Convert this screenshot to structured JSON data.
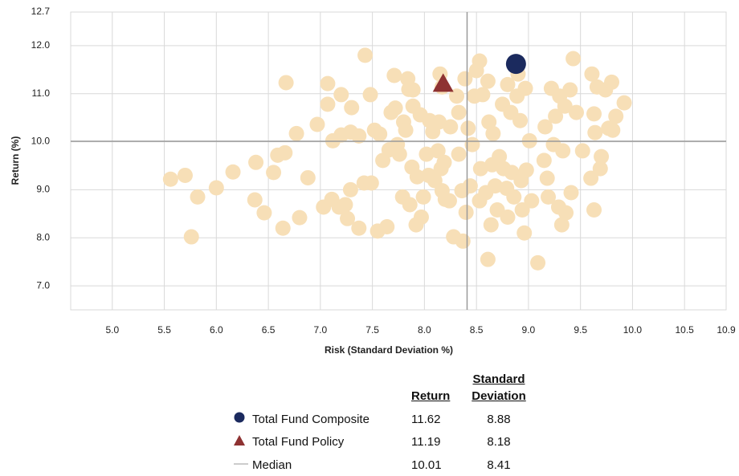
{
  "chart_data": {
    "type": "scatter",
    "xlabel": "Risk (Standard Deviation %)",
    "ylabel": "Return (%)",
    "xlim": [
      4.6,
      10.9
    ],
    "ylim": [
      6.5,
      12.7
    ],
    "xticks": [
      {
        "value": 5.0,
        "label": "5.0"
      },
      5.5,
      {
        "value": 6.0,
        "label": "6.0"
      },
      6.5,
      {
        "value": 7.0,
        "label": "7.0"
      },
      7.5,
      {
        "value": 8.0,
        "label": "8.0"
      },
      8.5,
      {
        "value": 9.0,
        "label": "9.0"
      },
      9.5,
      {
        "value": 10.0,
        "label": "10.0"
      },
      10.5,
      10.9
    ],
    "yticks": [
      {
        "value": 7.0,
        "label": "7.0"
      },
      {
        "value": 8.0,
        "label": "8.0"
      },
      {
        "value": 9.0,
        "label": "9.0"
      },
      {
        "value": 10.0,
        "label": "10.0"
      },
      {
        "value": 11.0,
        "label": "11.0"
      },
      {
        "value": 12.0,
        "label": "12.0"
      },
      12.7
    ],
    "grid": true,
    "series": [
      {
        "color": "#f7dfb7",
        "marker": "circle",
        "x": [
          5.56,
          5.7,
          5.82,
          5.76,
          6.0,
          6.16,
          6.38,
          6.37,
          6.46,
          6.55,
          6.59,
          6.66,
          6.64,
          6.67,
          6.77,
          6.8,
          6.88,
          6.97,
          7.03,
          7.07,
          7.07,
          7.12,
          7.11,
          7.18,
          7.2,
          7.2,
          7.24,
          7.26,
          7.3,
          7.29,
          7.29,
          7.37,
          7.37,
          7.42,
          7.43,
          7.48,
          7.49,
          7.52,
          7.55,
          7.57,
          7.6,
          7.64,
          7.66,
          7.68,
          7.71,
          7.72,
          7.74,
          7.76,
          7.79,
          7.8,
          7.82,
          7.84,
          7.85,
          7.86,
          7.88,
          7.89,
          7.89,
          7.93,
          7.92,
          7.96,
          7.97,
          7.99,
          8.02,
          8.04,
          8.05,
          8.08,
          8.1,
          8.13,
          8.15,
          8.17,
          8.14,
          8.16,
          8.17,
          8.19,
          8.2,
          8.24,
          8.25,
          8.28,
          8.31,
          8.33,
          8.33,
          8.36,
          8.37,
          8.39,
          8.4,
          8.42,
          8.44,
          8.46,
          8.48,
          8.5,
          8.53,
          8.53,
          8.54,
          8.56,
          8.59,
          8.61,
          8.61,
          8.62,
          8.64,
          8.65,
          8.66,
          8.68,
          8.7,
          8.72,
          8.75,
          8.76,
          8.79,
          8.8,
          8.8,
          8.83,
          8.84,
          8.86,
          8.89,
          8.9,
          8.92,
          8.93,
          8.94,
          8.96,
          8.97,
          8.98,
          9.01,
          9.03,
          9.09,
          9.15,
          9.16,
          9.18,
          9.19,
          9.22,
          9.24,
          9.26,
          9.29,
          9.3,
          9.32,
          9.33,
          9.35,
          9.36,
          9.4,
          9.41,
          9.43,
          9.46,
          9.52,
          9.6,
          9.61,
          9.63,
          9.63,
          9.64,
          9.66,
          9.69,
          9.7,
          9.74,
          9.77,
          9.8,
          9.81,
          9.84,
          9.92
        ],
        "y": [
          9.22,
          9.3,
          8.85,
          8.02,
          9.04,
          9.37,
          9.57,
          8.79,
          8.52,
          9.36,
          9.72,
          9.77,
          8.2,
          11.23,
          10.17,
          8.42,
          9.25,
          10.36,
          8.64,
          11.21,
          10.78,
          10.02,
          8.8,
          8.64,
          10.14,
          10.98,
          8.69,
          8.4,
          10.71,
          9.0,
          10.2,
          10.12,
          8.2,
          9.14,
          11.8,
          10.98,
          9.14,
          10.24,
          8.14,
          10.16,
          9.61,
          8.23,
          9.83,
          10.61,
          11.38,
          10.7,
          9.94,
          9.74,
          8.85,
          10.41,
          10.24,
          11.31,
          11.09,
          8.69,
          9.47,
          10.74,
          11.08,
          9.27,
          8.27,
          10.56,
          8.43,
          8.85,
          9.74,
          9.3,
          10.44,
          10.21,
          9.19,
          9.81,
          11.41,
          11.14,
          10.41,
          9.44,
          8.98,
          9.57,
          8.8,
          8.77,
          10.31,
          8.02,
          10.95,
          10.61,
          9.74,
          8.98,
          7.93,
          11.31,
          8.53,
          10.28,
          9.08,
          9.94,
          10.95,
          11.48,
          11.68,
          8.77,
          9.44,
          10.98,
          8.94,
          11.26,
          7.55,
          10.41,
          8.27,
          9.52,
          10.17,
          9.08,
          8.58,
          9.69,
          10.78,
          9.44,
          9.03,
          11.19,
          8.43,
          10.61,
          9.36,
          8.85,
          10.95,
          11.41,
          10.44,
          9.19,
          8.58,
          8.1,
          11.11,
          9.41,
          10.02,
          8.77,
          7.48,
          9.61,
          10.31,
          9.24,
          8.85,
          11.11,
          9.94,
          10.53,
          8.64,
          10.95,
          8.27,
          9.81,
          10.74,
          8.52,
          11.08,
          8.94,
          11.73,
          10.61,
          9.81,
          9.24,
          11.41,
          8.58,
          10.58,
          10.19,
          11.14,
          9.44,
          9.69,
          11.08,
          10.28,
          11.24,
          10.24,
          10.53,
          10.81
        ]
      },
      {
        "name": "Total Fund Composite",
        "color": "#1b2a5e",
        "marker": "circle",
        "x": [
          8.88
        ],
        "y": [
          11.62
        ]
      },
      {
        "name": "Total Fund Policy",
        "color": "#8e3232",
        "marker": "triangle",
        "x": [
          8.18
        ],
        "y": [
          11.19
        ]
      }
    ],
    "median": {
      "name": "Median",
      "color": "#9a9a9a",
      "x": 8.41,
      "y": 10.01
    },
    "table_headers": [
      "Return",
      "Standard Deviation"
    ]
  }
}
